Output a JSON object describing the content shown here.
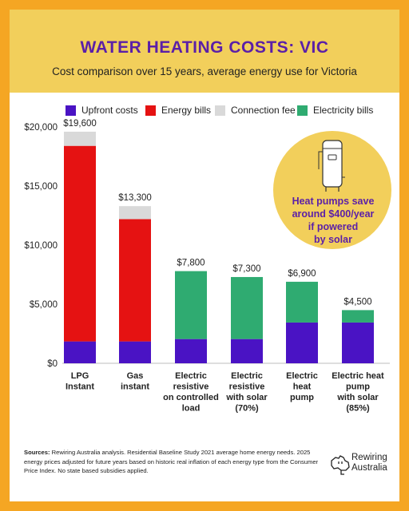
{
  "header": {
    "title": "Water heating costs: VIC",
    "subtitle": "Cost comparison over 15 years, average energy use for Victoria"
  },
  "legend": [
    {
      "label": "Upfront costs",
      "color": "#4a13c4"
    },
    {
      "label": "Energy bills",
      "color": "#e51212"
    },
    {
      "label": "Connection fee",
      "color": "#d9d9d9"
    },
    {
      "label": "Electricity bills",
      "color": "#2fab71"
    }
  ],
  "callout": {
    "text_lines": [
      "Heat pumps save",
      "around $400/year",
      "if powered",
      "by solar"
    ],
    "icon": "water-heater-icon"
  },
  "chart_data": {
    "type": "bar",
    "stacked": true,
    "ylim": [
      0,
      20000
    ],
    "yticks": [
      0,
      5000,
      10000,
      15000,
      20000
    ],
    "ytick_labels": [
      "$0",
      "$5,000",
      "$10,000",
      "$15,000",
      "$20,000"
    ],
    "grid": false,
    "legend_position": "top",
    "categories": [
      [
        "LPG",
        "Instant"
      ],
      [
        "Gas",
        "instant"
      ],
      [
        "Electric",
        "resistive",
        "on controlled",
        "load"
      ],
      [
        "Electric",
        "resistive",
        "with solar",
        "(70%)"
      ],
      [
        "Electric",
        "heat",
        "pump"
      ],
      [
        "Electric heat",
        "pump",
        "with solar",
        "(85%)"
      ]
    ],
    "totals": [
      "$19,600",
      "$13,300",
      "$7,800",
      "$7,300",
      "$6,900",
      "$4,500"
    ],
    "series": [
      {
        "name": "Upfront costs",
        "color": "#4a13c4",
        "values": [
          1850,
          1850,
          2050,
          2050,
          3450,
          3450
        ]
      },
      {
        "name": "Energy bills",
        "color": "#e51212",
        "values": [
          16550,
          10350,
          0,
          0,
          0,
          0
        ]
      },
      {
        "name": "Connection fee",
        "color": "#d9d9d9",
        "values": [
          1200,
          1100,
          0,
          0,
          0,
          0
        ]
      },
      {
        "name": "Electricity bills",
        "color": "#2fab71",
        "values": [
          0,
          0,
          5750,
          5250,
          3450,
          1050
        ]
      }
    ]
  },
  "footer": {
    "sources_label": "Sources:",
    "sources_text": "Rewiring Australia analysis. Residential Baseline Study 2021 average home energy needs. 2025 energy prices adjusted for future years based on historic real inflation of each energy type from the Consumer Price Index. No state based subsidies applied.",
    "logo_line1": "Rewiring",
    "logo_line2": "Australia"
  }
}
